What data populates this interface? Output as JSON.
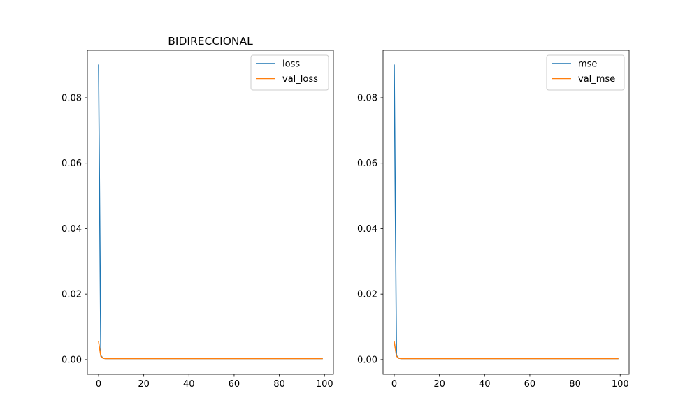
{
  "chart_data": [
    {
      "type": "line",
      "title": "BIDIRECCIONAL",
      "xlabel": "",
      "ylabel": "",
      "xlim": [
        -4.95,
        103.95
      ],
      "ylim": [
        -0.0045,
        0.0945
      ],
      "xticks": [
        0,
        20,
        40,
        60,
        80,
        100
      ],
      "xtick_labels": [
        "0",
        "20",
        "40",
        "60",
        "80",
        "100"
      ],
      "yticks": [
        0.0,
        0.02,
        0.04,
        0.06,
        0.08
      ],
      "ytick_labels": [
        "0.00",
        "0.02",
        "0.04",
        "0.06",
        "0.08"
      ],
      "grid": false,
      "legend_position": "top-right",
      "series": [
        {
          "name": "loss",
          "color": "#1f77b4",
          "x": [
            0,
            1,
            2,
            3,
            99
          ],
          "y": [
            0.09,
            0.0012,
            0.0004,
            0.0003,
            0.0003
          ]
        },
        {
          "name": "val_loss",
          "color": "#ff7f0e",
          "x": [
            0,
            1,
            2,
            3,
            99
          ],
          "y": [
            0.0055,
            0.001,
            0.0004,
            0.0003,
            0.0003
          ]
        }
      ]
    },
    {
      "type": "line",
      "title": "",
      "xlabel": "",
      "ylabel": "",
      "xlim": [
        -4.95,
        103.95
      ],
      "ylim": [
        -0.0045,
        0.0945
      ],
      "xticks": [
        0,
        20,
        40,
        60,
        80,
        100
      ],
      "xtick_labels": [
        "0",
        "20",
        "40",
        "60",
        "80",
        "100"
      ],
      "yticks": [
        0.0,
        0.02,
        0.04,
        0.06,
        0.08
      ],
      "ytick_labels": [
        "0.00",
        "0.02",
        "0.04",
        "0.06",
        "0.08"
      ],
      "grid": false,
      "legend_position": "top-right",
      "series": [
        {
          "name": "mse",
          "color": "#1f77b4",
          "x": [
            0,
            1,
            2,
            3,
            99
          ],
          "y": [
            0.09,
            0.0012,
            0.0004,
            0.0003,
            0.0003
          ]
        },
        {
          "name": "val_mse",
          "color": "#ff7f0e",
          "x": [
            0,
            1,
            2,
            3,
            99
          ],
          "y": [
            0.0055,
            0.001,
            0.0004,
            0.0003,
            0.0003
          ]
        }
      ]
    }
  ]
}
